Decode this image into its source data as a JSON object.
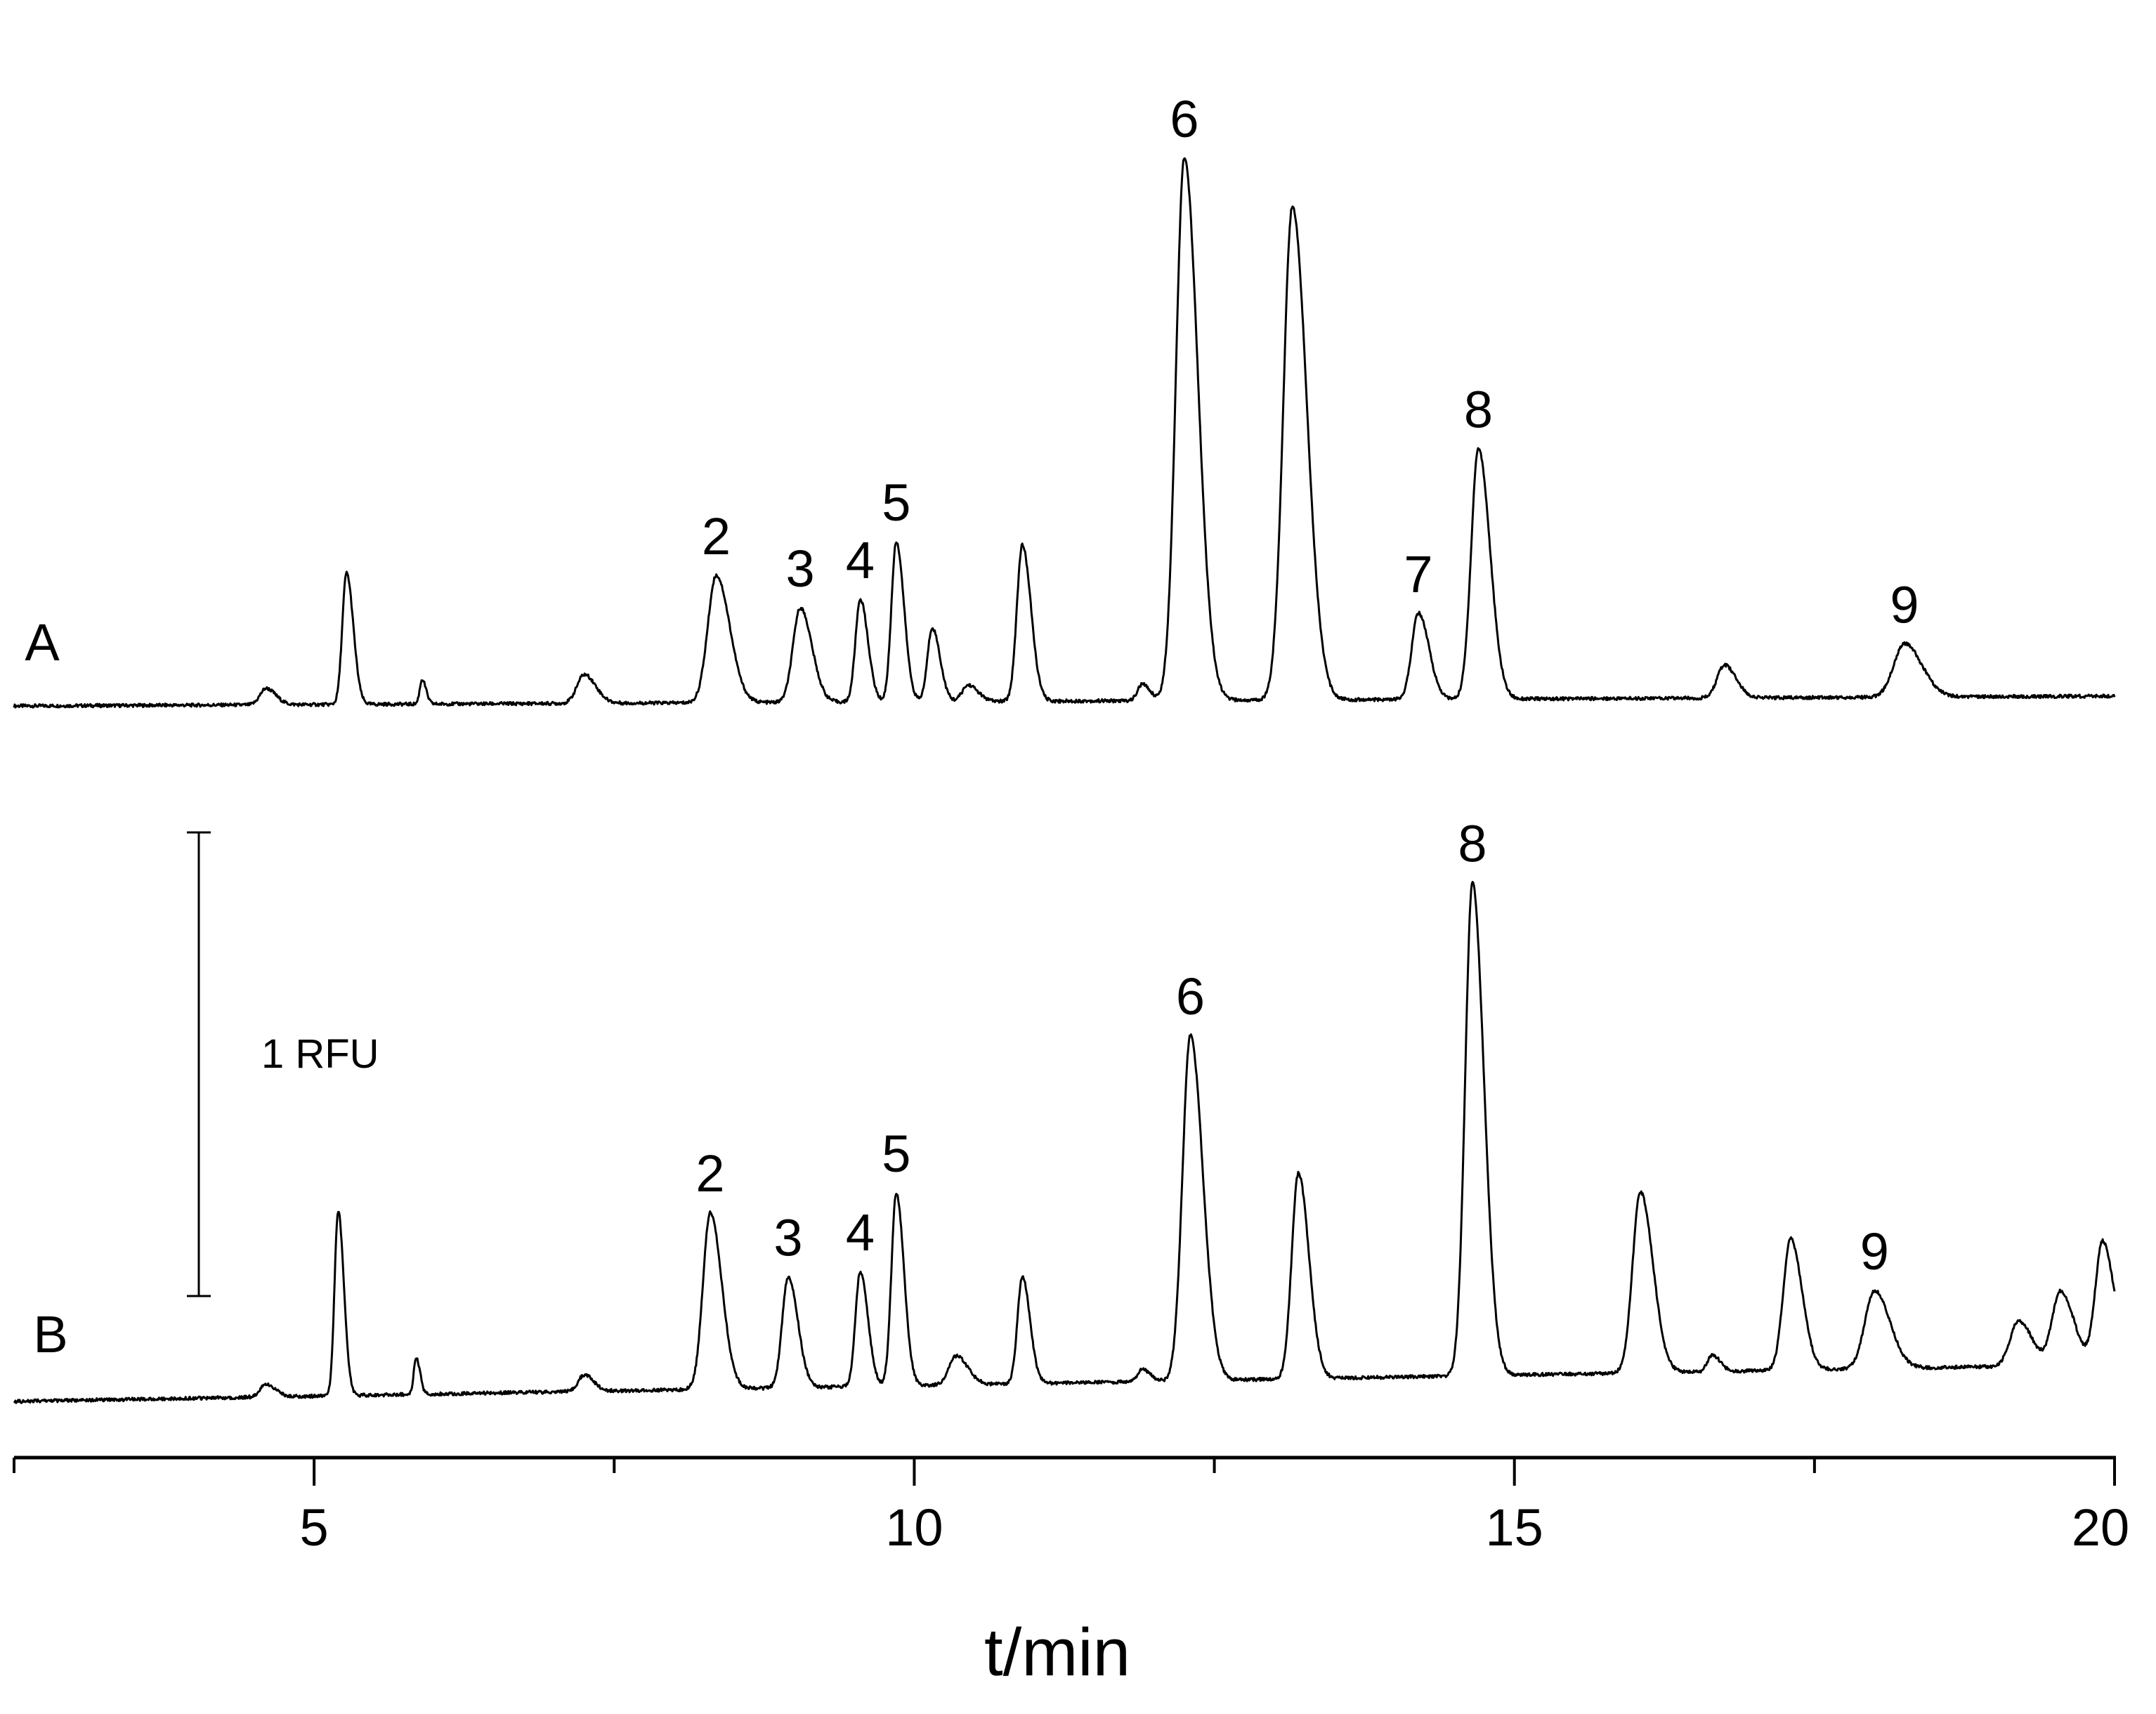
{
  "chart_data": {
    "type": "line",
    "xlabel": "t/min",
    "xlim": [
      2.5,
      20
    ],
    "x_ticks": [
      5,
      10,
      15,
      20
    ],
    "x_minor_ticks": [
      2.5,
      7.5,
      12.5,
      17.5
    ],
    "scale_bar": {
      "label": "1 RFU",
      "value": 1
    },
    "series": [
      {
        "name": "A",
        "baseline_start": 0,
        "baseline_end": 0.012,
        "peaks": [
          {
            "t": 4.6,
            "h": 0.02,
            "w": 0.05
          },
          {
            "t": 5.27,
            "h": 0.16,
            "w": 0.035
          },
          {
            "t": 5.9,
            "h": 0.03,
            "w": 0.02
          },
          {
            "t": 7.25,
            "h": 0.035,
            "w": 0.06
          },
          {
            "t": 8.35,
            "h": 0.155,
            "w": 0.07,
            "label": "2"
          },
          {
            "t": 9.05,
            "h": 0.115,
            "w": 0.06,
            "label": "3"
          },
          {
            "t": 9.55,
            "h": 0.125,
            "w": 0.04,
            "label": "4"
          },
          {
            "t": 9.85,
            "h": 0.195,
            "w": 0.04,
            "label": "5"
          },
          {
            "t": 10.15,
            "h": 0.09,
            "w": 0.04
          },
          {
            "t": 10.45,
            "h": 0.02,
            "w": 0.05
          },
          {
            "t": 10.9,
            "h": 0.19,
            "w": 0.045
          },
          {
            "t": 11.9,
            "h": 0.02,
            "w": 0.04
          },
          {
            "t": 12.25,
            "h": 0.66,
            "w": 0.07,
            "label": "6"
          },
          {
            "t": 13.15,
            "h": 0.6,
            "w": 0.075
          },
          {
            "t": 14.2,
            "h": 0.105,
            "w": 0.055,
            "label": "7"
          },
          {
            "t": 14.7,
            "h": 0.305,
            "w": 0.06,
            "label": "8"
          },
          {
            "t": 16.75,
            "h": 0.04,
            "w": 0.06
          },
          {
            "t": 18.25,
            "h": 0.065,
            "w": 0.09,
            "label": "9"
          }
        ]
      },
      {
        "name": "B",
        "baseline_start": 0,
        "baseline_end": 0.045,
        "peaks": [
          {
            "t": 4.6,
            "h": 0.015,
            "w": 0.05
          },
          {
            "t": 5.2,
            "h": 0.225,
            "w": 0.03
          },
          {
            "t": 5.85,
            "h": 0.045,
            "w": 0.02
          },
          {
            "t": 7.25,
            "h": 0.02,
            "w": 0.05
          },
          {
            "t": 8.3,
            "h": 0.215,
            "w": 0.06,
            "label": "2"
          },
          {
            "t": 8.95,
            "h": 0.135,
            "w": 0.05,
            "label": "3"
          },
          {
            "t": 9.55,
            "h": 0.14,
            "w": 0.04,
            "label": "4"
          },
          {
            "t": 9.85,
            "h": 0.235,
            "w": 0.04,
            "label": "5"
          },
          {
            "t": 10.35,
            "h": 0.035,
            "w": 0.06
          },
          {
            "t": 10.9,
            "h": 0.13,
            "w": 0.04
          },
          {
            "t": 11.9,
            "h": 0.015,
            "w": 0.04
          },
          {
            "t": 12.3,
            "h": 0.42,
            "w": 0.065,
            "label": "6"
          },
          {
            "t": 13.2,
            "h": 0.25,
            "w": 0.055
          },
          {
            "t": 14.65,
            "h": 0.6,
            "w": 0.06,
            "label": "8"
          },
          {
            "t": 16.05,
            "h": 0.22,
            "w": 0.065
          },
          {
            "t": 16.65,
            "h": 0.02,
            "w": 0.04
          },
          {
            "t": 17.3,
            "h": 0.16,
            "w": 0.06
          },
          {
            "t": 18.0,
            "h": 0.095,
            "w": 0.08,
            "label": "9"
          },
          {
            "t": 19.2,
            "h": 0.055,
            "w": 0.07
          },
          {
            "t": 19.55,
            "h": 0.09,
            "w": 0.07
          },
          {
            "t": 19.9,
            "h": 0.15,
            "w": 0.06
          }
        ]
      }
    ]
  }
}
